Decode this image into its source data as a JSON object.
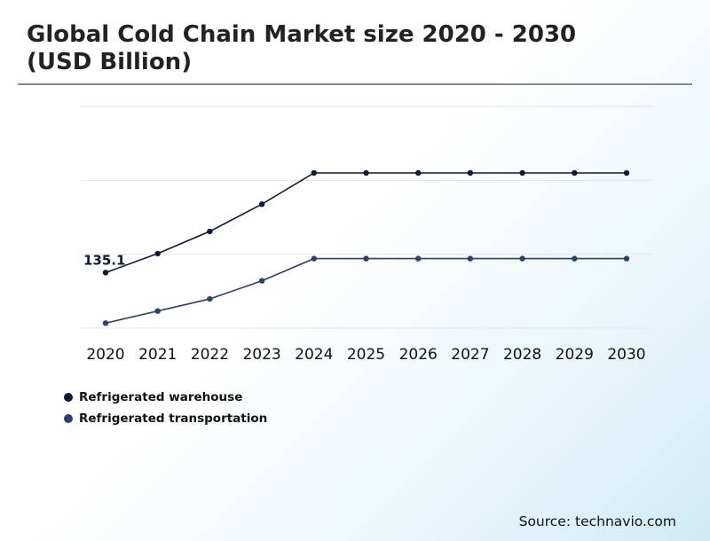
{
  "title": "Global Cold Chain Market size 2020 - 2030 (USD Billion)",
  "source": "Source: technavio.com",
  "chart_data": {
    "type": "line",
    "title": "Global Cold Chain Market size 2020 - 2030 (USD Billion)",
    "x": [
      "2020",
      "2021",
      "2022",
      "2023",
      "2024",
      "2025",
      "2026",
      "2027",
      "2028",
      "2029",
      "2030"
    ],
    "ylim": [
      80,
      300
    ],
    "grid": true,
    "y_axis_labels_shown": false,
    "legend_position": "bottom-left",
    "series": [
      {
        "name": "Refrigerated warehouse",
        "color": "#0b1a3a",
        "values": [
          135.1,
          154,
          176,
          203,
          234,
          234,
          234,
          234,
          234,
          234,
          234
        ]
      },
      {
        "name": "Refrigerated transportation",
        "color": "#2b4070",
        "values": [
          85,
          97,
          109,
          127,
          149,
          149,
          149,
          149,
          149,
          149,
          149
        ]
      }
    ],
    "annotations": [
      {
        "series": 0,
        "index": 0,
        "text": "135.1"
      }
    ]
  }
}
